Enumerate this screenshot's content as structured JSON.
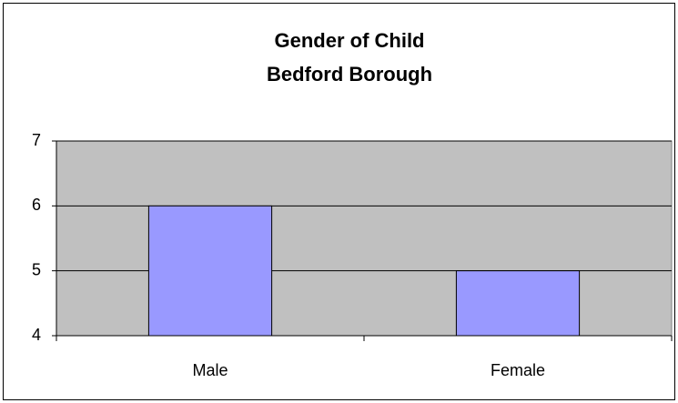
{
  "chart_data": {
    "type": "bar",
    "title": "Gender of Child",
    "subtitle": "Bedford Borough",
    "categories": [
      "Male",
      "Female"
    ],
    "values": [
      6,
      5
    ],
    "color": "#9999ff",
    "ylim": [
      4,
      7
    ],
    "yticks": [
      4,
      5,
      6,
      7
    ],
    "grid": true
  }
}
